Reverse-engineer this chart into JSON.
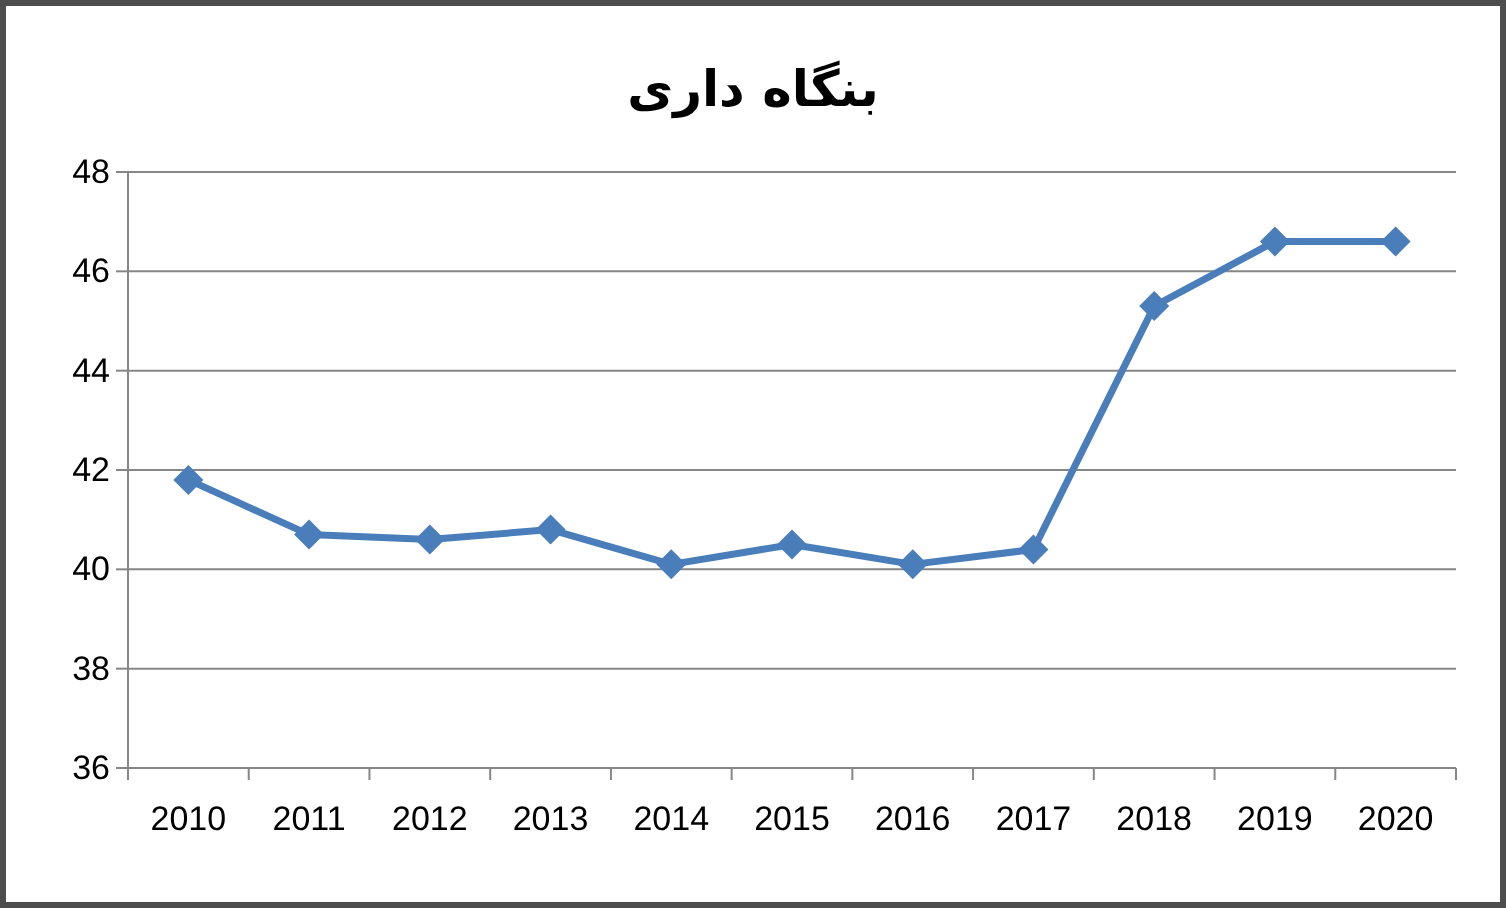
{
  "chart_data": {
    "type": "line",
    "title": "بنگاه داری",
    "categories": [
      "2010",
      "2011",
      "2012",
      "2013",
      "2014",
      "2015",
      "2016",
      "2017",
      "2018",
      "2019",
      "2020"
    ],
    "series": [
      {
        "color": "#4a7ebb",
        "values": [
          41.8,
          40.7,
          40.6,
          40.8,
          40.1,
          40.5,
          40.1,
          40.4,
          45.3,
          46.6,
          46.6
        ]
      }
    ],
    "ylim": [
      36,
      48
    ],
    "yticks": [
      36,
      38,
      40,
      42,
      44,
      46,
      48
    ],
    "grid": "y",
    "marker": "diamond",
    "line_style": "solid"
  }
}
